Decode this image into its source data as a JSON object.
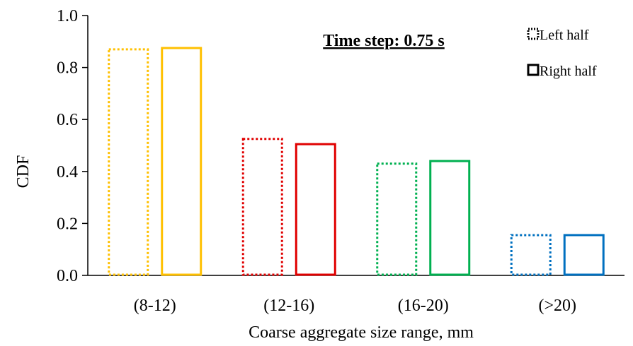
{
  "chart_data": {
    "type": "bar",
    "title": "",
    "xlabel": "Coarse aggregate size range, mm",
    "ylabel": "CDF",
    "ylim": [
      0,
      1.0
    ],
    "yticks": [
      "0.0",
      "0.2",
      "0.4",
      "0.6",
      "0.8",
      "1.0"
    ],
    "categories": [
      "(8-12)",
      "(12-16)",
      "(16-20)",
      "(>20)"
    ],
    "category_colors": [
      "#FFC000",
      "#E00000",
      "#00B050",
      "#0070C0"
    ],
    "series": [
      {
        "name": "Left half",
        "style": "dotted",
        "values": [
          0.87,
          0.525,
          0.43,
          0.155
        ]
      },
      {
        "name": "Right half",
        "style": "solid",
        "values": [
          0.875,
          0.505,
          0.44,
          0.155
        ]
      }
    ],
    "annotation": "Time step: 0.75 s",
    "legend": {
      "placement": "top-right",
      "entries": [
        {
          "label": "Left half",
          "icon": "dotted-square-icon"
        },
        {
          "label": "Right half",
          "icon": "solid-square-icon"
        }
      ]
    },
    "grid": false
  }
}
